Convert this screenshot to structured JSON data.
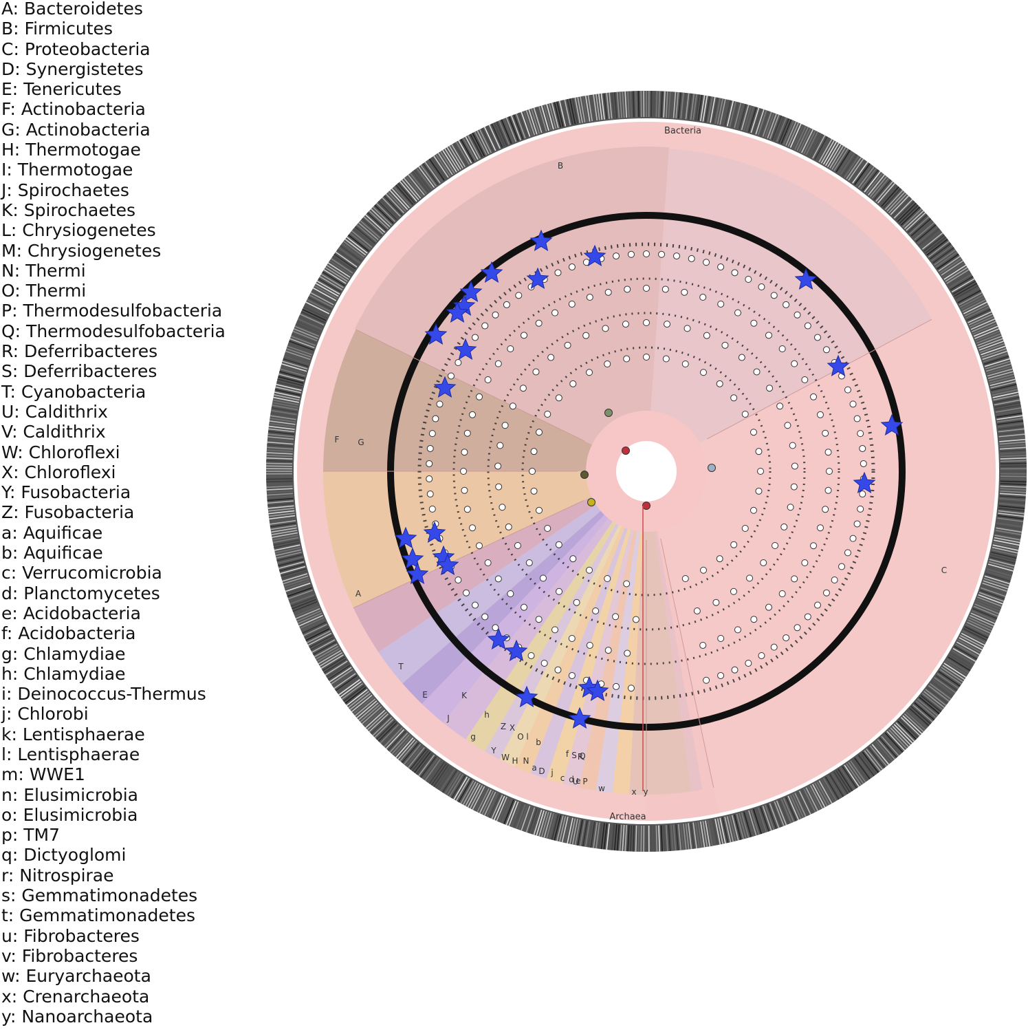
{
  "legend": {
    "items": [
      "A: Bacteroidetes",
      "B: Firmicutes",
      "C: Proteobacteria",
      "D: Synergistetes",
      "E: Tenericutes",
      "F: Actinobacteria",
      "G: Actinobacteria",
      "H: Thermotogae",
      "I: Thermotogae",
      "J: Spirochaetes",
      "K: Spirochaetes",
      "L: Chrysiogenetes",
      "M: Chrysiogenetes",
      "N: Thermi",
      "O: Thermi",
      "P: Thermodesulfobacteria",
      "Q: Thermodesulfobacteria",
      "R: Deferribacteres",
      "S: Deferribacteres",
      "T: Cyanobacteria",
      "U: Caldithrix",
      "V: Caldithrix",
      "W: Chloroflexi",
      "X: Chloroflexi",
      "Y: Fusobacteria",
      "Z: Fusobacteria",
      "a: Aquificae",
      "b: Aquificae",
      "c: Verrucomicrobia",
      "d: Planctomycetes",
      "e: Acidobacteria",
      "f: Acidobacteria",
      "g: Chlamydiae",
      "h: Chlamydiae",
      "i: Deinococcus-Thermus",
      "j: Chlorobi",
      "k: Lentisphaerae",
      "l: Lentisphaerae",
      "m: WWE1",
      "n: Elusimicrobia",
      "o: Elusimicrobia",
      "p: TM7",
      "q: Dictyoglomi",
      "r: Nitrospirae",
      "s: Gemmatimonadetes",
      "t: Gemmatimonadetes",
      "u: Fibrobacteres",
      "v: Fibrobacteres",
      "w: Euryarchaeota",
      "x: Crenarchaeota",
      "y: Nanoarchaeota"
    ]
  },
  "tree": {
    "domain_labels": {
      "bacteria": "Bacteria",
      "archaea": "Archaea"
    },
    "colors": {
      "domain_bacteria": "#f6c9c9",
      "domain_archaea": "#f4c6c6",
      "firmicutes": "#e4bdbd",
      "proteobacteria": "#e8c3c8",
      "actinobacteria": "#cfae9f",
      "bacteroidetes": "#ebc7a8",
      "archaea_clade": "#e5c4bb",
      "star": "#3548e8",
      "ring": "#111111"
    },
    "clades": [
      {
        "label": "B",
        "color": "#e2b9b8"
      },
      {
        "label": "C",
        "color": "#e7c2c7"
      },
      {
        "label": "G",
        "color": "#d4b1a3"
      },
      {
        "label": "F",
        "color": "#cdaa9a"
      },
      {
        "label": "A",
        "color": "#ebc6a6"
      },
      {
        "label": "T",
        "color": "#d7aebd"
      },
      {
        "label": "E",
        "color": "#cbbbe0"
      },
      {
        "label": "K",
        "color": "#b9a6da"
      },
      {
        "label": "J",
        "color": "#c9b3e2"
      },
      {
        "label": "h",
        "color": "#d5b8dc"
      },
      {
        "label": "g",
        "color": "#dbc3d3"
      },
      {
        "label": "Z",
        "color": "#e6d3a8"
      },
      {
        "label": "Y",
        "color": "#d9c9d8"
      },
      {
        "label": "X",
        "color": "#cfc0de"
      },
      {
        "label": "W",
        "color": "#ead7b0"
      },
      {
        "label": "l",
        "color": "#f0d0a8"
      },
      {
        "label": "H",
        "color": "#d8c6dd"
      },
      {
        "label": "O",
        "color": "#f2d5a6"
      },
      {
        "label": "N",
        "color": "#e4c9d6"
      },
      {
        "label": "b",
        "color": "#e8cfae"
      },
      {
        "label": "a",
        "color": "#d6c4e0"
      },
      {
        "label": "D",
        "color": "#f0c7b2"
      },
      {
        "label": "j",
        "color": "#e2c8d4"
      },
      {
        "label": "c",
        "color": "#d9cde2"
      },
      {
        "label": "d",
        "color": "#eed1b6"
      },
      {
        "label": "e",
        "color": "#e2c7da"
      },
      {
        "label": "f",
        "color": "#f3d2a7"
      },
      {
        "label": "S",
        "color": "#dcc9e3"
      },
      {
        "label": "R",
        "color": "#e9cfb2"
      },
      {
        "label": "U",
        "color": "#cfc3e3"
      },
      {
        "label": "Q",
        "color": "#f0cda3"
      },
      {
        "label": "P",
        "color": "#e0c4d9"
      },
      {
        "label": "w",
        "color": "#e4c4b9"
      },
      {
        "label": "x",
        "color": "#e8c2c8"
      },
      {
        "label": "y",
        "color": "#f0c4c4"
      }
    ]
  }
}
